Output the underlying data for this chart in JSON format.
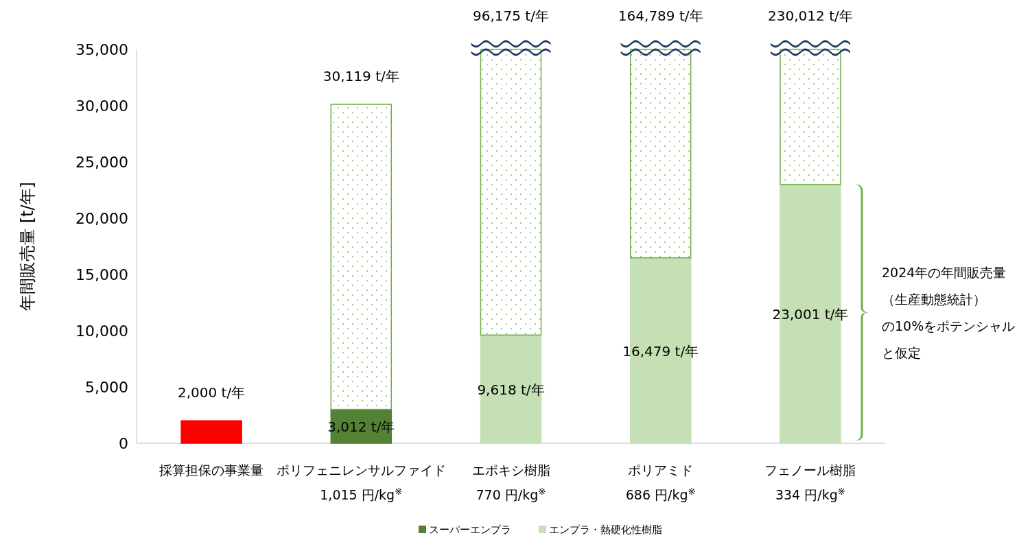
{
  "chart_data": {
    "type": "bar",
    "stacked": true,
    "ylabel": "年間販売量 [t/年]",
    "categories": [
      "採算担保の事業量",
      "ポリフェニレンサルファイド\n1,015 円/kg$^{※}$",
      "エポキシ樹脂\n770 円/kg$^{※}$",
      "ポリアミド\n686 円/kg$^{※}$",
      "フェノール樹脂\n334 円/kg$^{※}$"
    ],
    "series": [
      {
        "color": "#ff0000",
        "values": [
          2000,
          null,
          null,
          null,
          null
        ]
      },
      {
        "name": "スーパーエンプラ",
        "color": "#548235",
        "values": [
          null,
          3012,
          null,
          null,
          null
        ],
        "value_labels": [
          null,
          "3,012 t/年",
          null,
          null,
          null
        ]
      },
      {
        "name": "エンプラ・熱硬化性樹脂",
        "color": "#c5e0b4",
        "values": [
          null,
          null,
          9618,
          16479,
          23001
        ],
        "value_labels": [
          null,
          null,
          "9,618 t/年",
          "16,479 t/年",
          "23,001 t/年"
        ]
      },
      {
        "color": "#70ad47",
        "line_style": "dotted",
        "values": [
          null,
          27107,
          25382,
          18521,
          11999
        ]
      }
    ],
    "totals": [
      "2,000 t/年",
      "30,119 t/年",
      null,
      null,
      null
    ],
    "ylim": [
      0,
      35000
    ],
    "yticks": [
      {
        "value": 0,
        "label": "0"
      },
      {
        "value": 5000,
        "label": "5,000"
      },
      {
        "value": 10000,
        "label": "10,000"
      },
      {
        "value": 15000,
        "label": "15,000"
      },
      {
        "value": 20000,
        "label": "20,000"
      },
      {
        "value": 25000,
        "label": "25,000"
      },
      {
        "value": 30000,
        "label": "30,000"
      },
      {
        "value": 35000,
        "label": "35,000"
      }
    ],
    "annotations": [
      "96,175 t/年",
      "164,789 t/年",
      "230,012 t/年",
      "2024年の年間販売量（生産動態統計）の10%をポテンシャルと仮定"
    ],
    "legend": "bottom",
    "grid": false
  }
}
